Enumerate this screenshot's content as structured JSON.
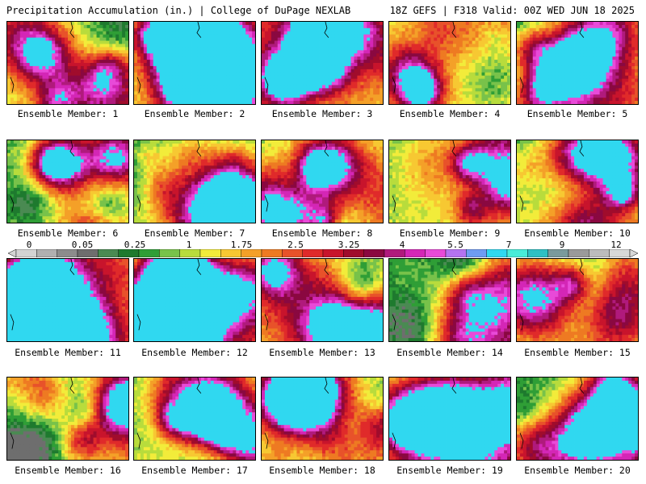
{
  "header": {
    "left_title": "Precipitation Accumulation (in.) | College of DuPage NEXLAB",
    "right_title": "18Z GEFS | F318 Valid: 00Z WED JUN 18 2025"
  },
  "legend": {
    "tick_labels": [
      "0",
      "0.05",
      "0.25",
      "1",
      "1.75",
      "2.5",
      "3.25",
      "4",
      "5.5",
      "7",
      "9",
      "12"
    ],
    "colors": [
      "#d3d3d3",
      "#b0b0b0",
      "#8c8c8c",
      "#6e6e6e",
      "#4a8a52",
      "#1e7a2e",
      "#2f9e36",
      "#78c24a",
      "#b8dc3c",
      "#f2ec3a",
      "#f7c832",
      "#f4a028",
      "#ee7a22",
      "#e8522a",
      "#e02a2a",
      "#c8142c",
      "#a00c2c",
      "#8a0840",
      "#b01a7c",
      "#d426b6",
      "#e84ad8",
      "#b473f0",
      "#6e9cf2",
      "#30d8f0",
      "#48ecd8",
      "#2ec0c4",
      "#7a9a9c",
      "#9a9a9a",
      "#bcbcbc",
      "#d8d8d8"
    ]
  },
  "panels": [
    {
      "label": "Ensemble Member: 1"
    },
    {
      "label": "Ensemble Member: 2"
    },
    {
      "label": "Ensemble Member: 3"
    },
    {
      "label": "Ensemble Member: 4"
    },
    {
      "label": "Ensemble Member: 5"
    },
    {
      "label": "Ensemble Member: 6"
    },
    {
      "label": "Ensemble Member: 7"
    },
    {
      "label": "Ensemble Member: 8"
    },
    {
      "label": "Ensemble Member: 9"
    },
    {
      "label": "Ensemble Member: 10"
    },
    {
      "label": "Ensemble Member: 11"
    },
    {
      "label": "Ensemble Member: 12"
    },
    {
      "label": "Ensemble Member: 13"
    },
    {
      "label": "Ensemble Member: 14"
    },
    {
      "label": "Ensemble Member: 15"
    },
    {
      "label": "Ensemble Member: 16"
    },
    {
      "label": "Ensemble Member: 17"
    },
    {
      "label": "Ensemble Member: 18"
    },
    {
      "label": "Ensemble Member: 19"
    },
    {
      "label": "Ensemble Member: 20"
    }
  ]
}
